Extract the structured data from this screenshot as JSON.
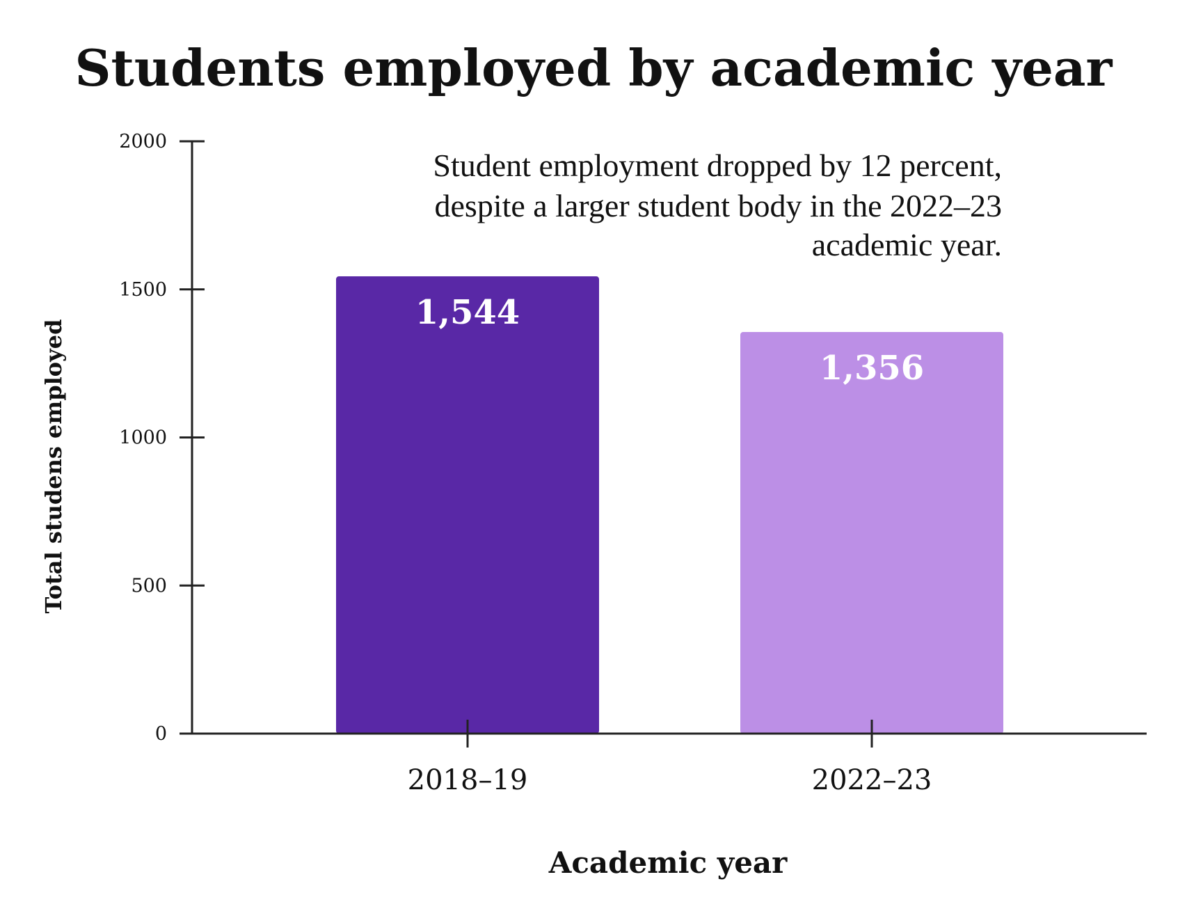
{
  "chart_data": {
    "type": "bar",
    "title": "Students employed by academic year",
    "xlabel": "Academic year",
    "ylabel": "Total studens employed",
    "categories": [
      "2018–19",
      "2022–23"
    ],
    "values": [
      1544,
      1356
    ],
    "value_labels": [
      "1,544",
      "1,356"
    ],
    "colors": [
      "#5928a6",
      "#bc8fe6"
    ],
    "ylim": [
      0,
      2000
    ],
    "yticks": [
      0,
      500,
      1000,
      1500,
      2000
    ],
    "grid": false,
    "annotation": [
      "Student employment dropped by 12 percent,",
      "despite a larger student body in the 2022–23",
      "academic year."
    ]
  }
}
